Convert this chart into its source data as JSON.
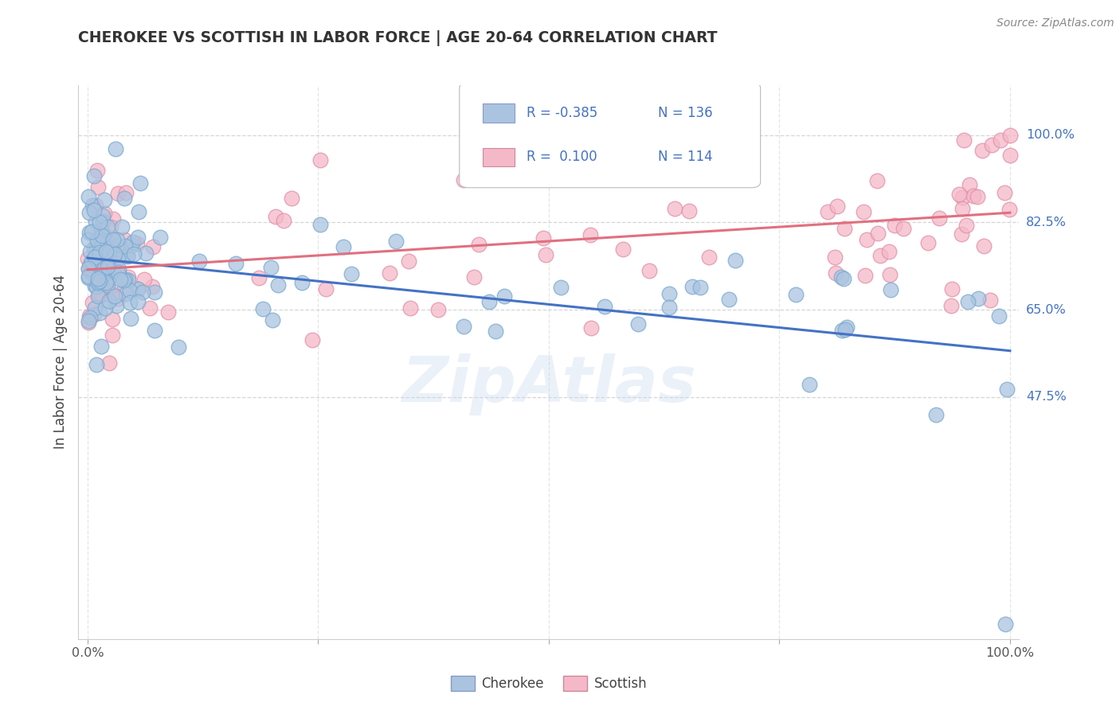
{
  "title": "CHEROKEE VS SCOTTISH IN LABOR FORCE | AGE 20-64 CORRELATION CHART",
  "source": "Source: ZipAtlas.com",
  "ylabel": "In Labor Force | Age 20-64",
  "ytick_labels": [
    "100.0%",
    "82.5%",
    "65.0%",
    "47.5%"
  ],
  "ytick_values": [
    1.0,
    0.825,
    0.65,
    0.475
  ],
  "cherokee_color": "#aac4e0",
  "scottish_color": "#f5b8c8",
  "cherokee_line_color": "#4472c4",
  "scottish_line_color": "#e07080",
  "legend_R_cherokee": "-0.385",
  "legend_N_cherokee": "136",
  "legend_R_scottish": "0.100",
  "legend_N_scottish": "114",
  "background_color": "#ffffff",
  "grid_color": "#cccccc",
  "watermark": "ZipAtlas",
  "title_color": "#333333",
  "source_color": "#888888",
  "ytick_color": "#4472c4",
  "ylabel_color": "#444444"
}
